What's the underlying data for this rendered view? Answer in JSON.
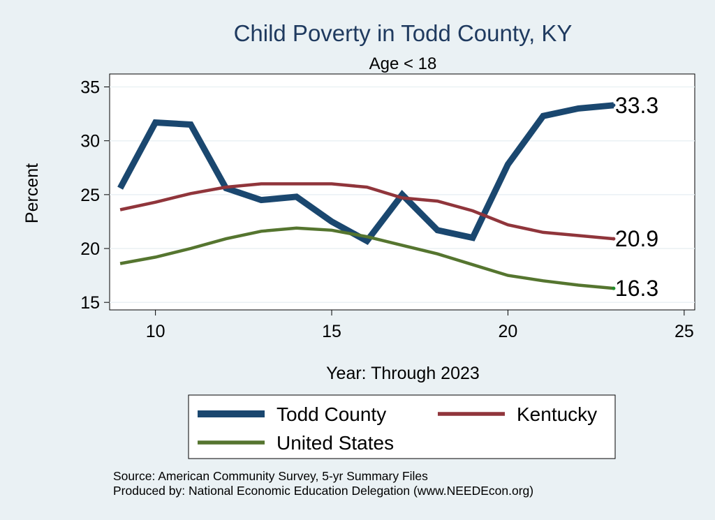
{
  "chart_data": {
    "type": "line",
    "title": "Child Poverty in Todd County, KY",
    "subtitle": "Age < 18",
    "xlabel": "Year: Through 2023",
    "ylabel": "Percent",
    "xlim": [
      8.7,
      25.3
    ],
    "ylim": [
      14.3,
      36.2
    ],
    "xticks": [
      10,
      15,
      20,
      25
    ],
    "yticks": [
      15,
      20,
      25,
      30,
      35
    ],
    "grid": true,
    "legend_position": "bottom",
    "x": [
      9,
      10,
      11,
      12,
      13,
      14,
      15,
      16,
      17,
      18,
      19,
      20,
      21,
      22,
      23
    ],
    "series": [
      {
        "name": "Todd County",
        "color": "#1a476f",
        "values": [
          25.6,
          31.7,
          31.5,
          25.6,
          24.5,
          24.8,
          22.5,
          20.7,
          25.0,
          21.7,
          21.0,
          27.8,
          32.3,
          33.0,
          33.3
        ],
        "end_label": "33.3"
      },
      {
        "name": "Kentucky",
        "color": "#90353b",
        "values": [
          23.6,
          24.3,
          25.1,
          25.7,
          26.0,
          26.0,
          26.0,
          25.7,
          24.7,
          24.4,
          23.5,
          22.2,
          21.5,
          21.2,
          20.9
        ],
        "end_label": "20.9"
      },
      {
        "name": "United States",
        "color": "#55752f",
        "values": [
          18.6,
          19.2,
          20.0,
          20.9,
          21.6,
          21.9,
          21.7,
          21.1,
          20.3,
          19.5,
          18.5,
          17.5,
          17.0,
          16.6,
          16.3
        ],
        "end_label": "16.3"
      }
    ],
    "notes": [
      "Source: American Community Survey, 5-yr Summary Files",
      "Produced by: National Economic Education Delegation (www.NEEDEcon.org)"
    ]
  }
}
